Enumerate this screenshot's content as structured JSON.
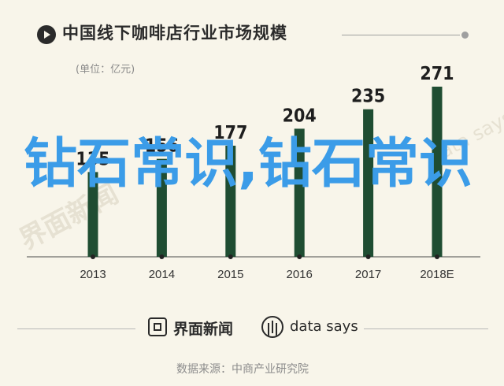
{
  "title": "中国线下咖啡店行业市场规模",
  "unit": "(单位：亿元)",
  "chart_data": {
    "type": "bar",
    "categories": [
      "2013",
      "2014",
      "2015",
      "2016",
      "2017",
      "2018E"
    ],
    "values": [
      135,
      156,
      177,
      204,
      235,
      271
    ],
    "title": "中国线下咖啡店行业市场规模",
    "xlabel": "",
    "ylabel": "",
    "unit": "亿元",
    "ylim": [
      0,
      280
    ],
    "grid": false,
    "bar_color": "#1f4d32"
  },
  "brand": {
    "name": "界面新闻",
    "data_says": "data says"
  },
  "source": "数据来源：中商产业研究院",
  "watermark": {
    "overlay": "钻石常识,钻石常识",
    "faint_left": "界面新闻",
    "faint_right": "data says"
  },
  "colors": {
    "background": "#f8f5ea",
    "bar": "#1f4d32",
    "overlay": "#3b9ce8"
  }
}
